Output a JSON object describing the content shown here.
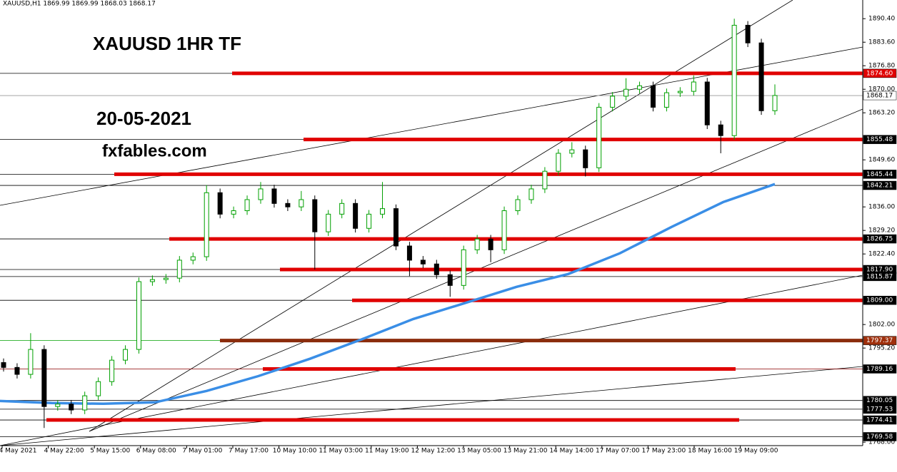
{
  "chart_data": {
    "type": "candlestick",
    "header": "XAUUSD,H1  1869.99 1869.99 1868.03 1868.17",
    "title": "XAUUSD 1HR TF",
    "annotations": [
      "20-05-2021",
      "fxfables.com"
    ],
    "categories": [
      "4 May 2021",
      "4 May 22:00",
      "5 May 15:00",
      "6 May 08:00",
      "7 May 01:00",
      "7 May 17:00",
      "10 May 10:00",
      "11 May 03:00",
      "11 May 19:00",
      "12 May 12:00",
      "13 May 05:00",
      "13 May 21:00",
      "14 May 14:00",
      "17 May 07:00",
      "17 May 23:00",
      "18 May 16:00",
      "19 May 09:00"
    ],
    "ylim": [
      1767,
      1895.8
    ],
    "yticks": [
      {
        "value": 1890.4,
        "label": "1890.40"
      },
      {
        "value": 1883.6,
        "label": "1883.60"
      },
      {
        "value": 1876.8,
        "label": "1876.80"
      },
      {
        "value": 1870,
        "label": "1870.00"
      },
      {
        "value": 1863.2,
        "label": "1863.20"
      },
      {
        "value": 1849.6,
        "label": "1849.60"
      },
      {
        "value": 1836,
        "label": "1836.00"
      },
      {
        "value": 1829.2,
        "label": "1829.20"
      },
      {
        "value": 1822.4,
        "label": "1822.40"
      },
      {
        "value": 1802,
        "label": "1802.00"
      },
      {
        "value": 1795.2,
        "label": "1795.20"
      },
      {
        "value": 1768,
        "label": "1768.00"
      }
    ],
    "up_color": "#00a000",
    "down_color": "#000000",
    "open": [
      1791.0,
      1789.6,
      1787.6,
      1794.8,
      1778.3,
      1779.0,
      1777.3,
      1781.4,
      1785.5,
      1791.7,
      1794.8,
      1814.4,
      1815.0,
      1815.4,
      1820.6,
      1821.6,
      1840.1,
      1833.9,
      1834.9,
      1838.1,
      1841.2,
      1837.0,
      1836.0,
      1838.1,
      1828.8,
      1833.9,
      1837.0,
      1829.8,
      1833.9,
      1835.5,
      1824.7,
      1820.6,
      1819.5,
      1816.4,
      1813.3,
      1823.6,
      1826.7,
      1823.6,
      1834.9,
      1838.1,
      1841.2,
      1846.3,
      1851.5,
      1852.5,
      1847.3,
      1864.8,
      1868.0,
      1870.0,
      1871.0,
      1864.8,
      1869.0,
      1869.4,
      1872.1,
      1859.7,
      1856.6,
      1888.5,
      1883.4,
      1863.8
    ],
    "high": [
      1792.2,
      1790.8,
      1799.5,
      1796.0,
      1780.2,
      1780.2,
      1782.6,
      1786.7,
      1792.9,
      1796.0,
      1815.6,
      1816.2,
      1816.6,
      1821.8,
      1822.8,
      1842.3,
      1841.3,
      1836.1,
      1839.3,
      1843.2,
      1842.4,
      1838.2,
      1840.6,
      1839.3,
      1835.1,
      1838.2,
      1838.2,
      1835.1,
      1843.2,
      1836.7,
      1825.9,
      1821.8,
      1820.7,
      1817.6,
      1824.8,
      1827.9,
      1827.9,
      1836.1,
      1839.3,
      1842.4,
      1847.5,
      1852.7,
      1854.7,
      1853.7,
      1866.0,
      1869.2,
      1873.2,
      1872.2,
      1872.2,
      1870.2,
      1870.6,
      1874.0,
      1873.3,
      1860.9,
      1890.4,
      1889.7,
      1884.6,
      1871.4
    ],
    "low": [
      1788.4,
      1786.4,
      1786.4,
      1772.1,
      1777.1,
      1776.1,
      1776.1,
      1780.2,
      1784.3,
      1790.5,
      1793.6,
      1813.2,
      1813.8,
      1814.2,
      1819.4,
      1820.4,
      1832.7,
      1832.7,
      1833.7,
      1836.9,
      1835.8,
      1834.8,
      1834.8,
      1817.9,
      1827.6,
      1832.7,
      1828.6,
      1828.6,
      1832.7,
      1823.5,
      1816.0,
      1818.3,
      1815.2,
      1810.0,
      1812.1,
      1822.4,
      1820.0,
      1822.4,
      1833.7,
      1836.9,
      1840.0,
      1845.1,
      1850.3,
      1844.8,
      1846.1,
      1863.6,
      1866.8,
      1868.8,
      1863.6,
      1863.6,
      1867.8,
      1868.2,
      1858.5,
      1851.5,
      1855.4,
      1882.2,
      1862.6,
      1862.6
    ],
    "close": [
      1789.6,
      1787.6,
      1794.8,
      1778.3,
      1779.0,
      1777.3,
      1781.4,
      1785.5,
      1791.7,
      1794.8,
      1814.4,
      1815.0,
      1815.4,
      1820.6,
      1821.6,
      1840.1,
      1833.9,
      1834.9,
      1838.1,
      1841.2,
      1837.0,
      1836.0,
      1838.1,
      1828.8,
      1833.9,
      1837.0,
      1829.8,
      1833.9,
      1835.5,
      1824.7,
      1820.6,
      1819.5,
      1816.4,
      1813.3,
      1823.6,
      1826.7,
      1823.6,
      1834.9,
      1838.1,
      1841.2,
      1846.3,
      1851.5,
      1852.5,
      1847.3,
      1864.8,
      1868.0,
      1870.0,
      1871.0,
      1864.8,
      1869.0,
      1869.4,
      1872.1,
      1859.7,
      1856.6,
      1888.5,
      1883.4,
      1863.8,
      1868.2
    ],
    "moving_average": {
      "color": "#3a8ee6",
      "values": [
        1779.9,
        1779.3,
        1779.1,
        1779.5,
        1782.8,
        1787.1,
        1792.1,
        1797.7,
        1803.6,
        1808.2,
        1812.9,
        1816.6,
        1822.6,
        1830.2,
        1837.4,
        1842.6
      ]
    },
    "levels": [
      {
        "value": 1874.6,
        "label": "1874.60",
        "color": "#e00000",
        "box": "#e00000"
      },
      {
        "value": 1868.17,
        "label": "1868.17",
        "color": "#999999",
        "box": "#ffffff"
      },
      {
        "value": 1855.48,
        "label": "1855.48",
        "color": "#e00000",
        "box": "#000000"
      },
      {
        "value": 1845.44,
        "label": "1845.44",
        "color": "#e00000",
        "box": "#000000"
      },
      {
        "value": 1842.21,
        "label": "1842.21",
        "color": "#000000",
        "box": "#000000"
      },
      {
        "value": 1826.75,
        "label": "1826.75",
        "color": "#e00000",
        "box": "#000000"
      },
      {
        "value": 1817.9,
        "label": "1817.90",
        "color": "#e00000",
        "box": "#000000"
      },
      {
        "value": 1815.87,
        "label": "1815.87",
        "color": "#000000",
        "box": "#000000"
      },
      {
        "value": 1809,
        "label": "1809.00",
        "color": "#e00000",
        "box": "#000000"
      },
      {
        "value": 1797.37,
        "label": "1797.37",
        "color": "#8b2c0c",
        "box": "#a0300c"
      },
      {
        "value": 1789.16,
        "label": "1789.16",
        "color": "#e00000",
        "box": "#000000"
      },
      {
        "value": 1780.05,
        "label": "1780.05",
        "color": "#000000",
        "box": "#000000"
      },
      {
        "value": 1777.53,
        "label": "1777.53",
        "color": "#000000",
        "box": "#000000"
      },
      {
        "value": 1774.41,
        "label": "1774.41",
        "color": "#e00000",
        "box": "#000000"
      },
      {
        "value": 1769.58,
        "label": "1769.58",
        "color": "#000000",
        "box": "#000000"
      }
    ]
  }
}
